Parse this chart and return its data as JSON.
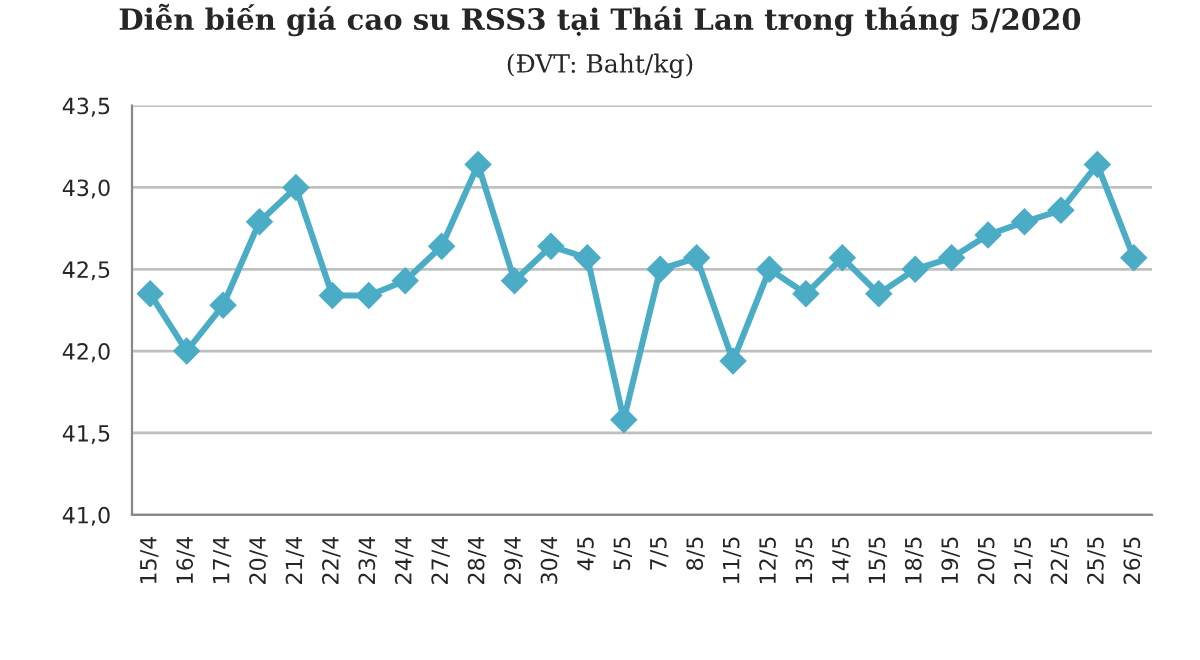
{
  "chart_data": {
    "type": "line",
    "title": "Diễn biến giá cao su RSS3 tại Thái Lan trong tháng 5/2020",
    "subtitle": "(ĐVT: Baht/kg)",
    "categories": [
      "15/4",
      "16/4",
      "17/4",
      "20/4",
      "21/4",
      "22/4",
      "23/4",
      "24/4",
      "27/4",
      "28/4",
      "29/4",
      "30/4",
      "4/5",
      "5/5",
      "7/5",
      "8/5",
      "11/5",
      "12/5",
      "13/5",
      "14/5",
      "15/5",
      "18/5",
      "19/5",
      "20/5",
      "21/5",
      "22/5",
      "25/5",
      "26/5"
    ],
    "series": [
      {
        "color": "#4bacc6",
        "values": [
          42.35,
          42.0,
          42.28,
          42.79,
          43.0,
          42.34,
          42.34,
          42.43,
          42.64,
          43.14,
          42.43,
          42.64,
          42.57,
          41.58,
          42.5,
          42.57,
          41.94,
          42.5,
          42.35,
          42.57,
          42.35,
          42.5,
          42.57,
          42.71,
          42.79,
          42.86,
          43.14,
          42.57
        ]
      }
    ],
    "ylim": [
      41.0,
      43.5
    ],
    "yticks": [
      {
        "value": 41.0,
        "label": "41,0"
      },
      {
        "value": 41.5,
        "label": "41,5"
      },
      {
        "value": 42.0,
        "label": "42,0"
      },
      {
        "value": 42.5,
        "label": "42,5"
      },
      {
        "value": 43.0,
        "label": "43,0"
      },
      {
        "value": 43.5,
        "label": "43,5"
      }
    ],
    "grid": "y",
    "marker": "diamond",
    "line_style": "solid",
    "legend": false
  }
}
